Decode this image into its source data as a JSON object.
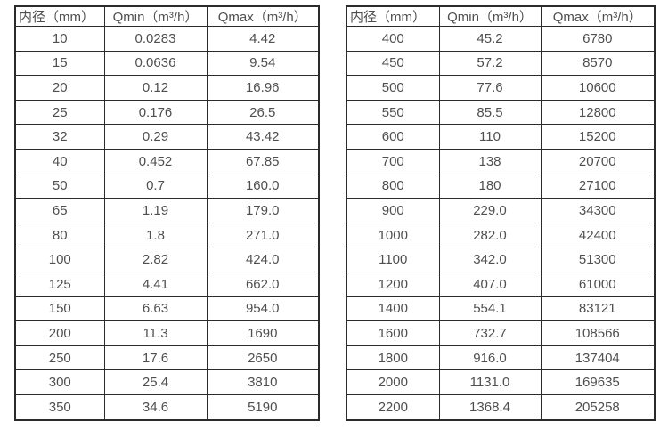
{
  "page": {
    "background": "#ffffff"
  },
  "colors": {
    "table_border": "#2b2b2b",
    "text": "#4f4f4f"
  },
  "tables": [
    {
      "name": "flow-spec-table-small-diameters",
      "columns": [
        "内径（mm）",
        "Qmin（m³/h）",
        "Qmax（m³/h）"
      ],
      "rows": [
        [
          "10",
          "0.0283",
          "4.42"
        ],
        [
          "15",
          "0.0636",
          "9.54"
        ],
        [
          "20",
          "0.12",
          "16.96"
        ],
        [
          "25",
          "0.176",
          "26.5"
        ],
        [
          "32",
          "0.29",
          "43.42"
        ],
        [
          "40",
          "0.452",
          "67.85"
        ],
        [
          "50",
          "0.7",
          "160.0"
        ],
        [
          "65",
          "1.19",
          "179.0"
        ],
        [
          "80",
          "1.8",
          "271.0"
        ],
        [
          "100",
          "2.82",
          "424.0"
        ],
        [
          "125",
          "4.41",
          "662.0"
        ],
        [
          "150",
          "6.63",
          "954.0"
        ],
        [
          "200",
          "11.3",
          "1690"
        ],
        [
          "250",
          "17.6",
          "2650"
        ],
        [
          "300",
          "25.4",
          "3810"
        ],
        [
          "350",
          "34.6",
          "5190"
        ]
      ]
    },
    {
      "name": "flow-spec-table-large-diameters",
      "columns": [
        "内径（mm）",
        "Qmin（m³/h）",
        "Qmax（m³/h）"
      ],
      "rows": [
        [
          "400",
          "45.2",
          "6780"
        ],
        [
          "450",
          "57.2",
          "8570"
        ],
        [
          "500",
          "77.6",
          "10600"
        ],
        [
          "550",
          "85.5",
          "12800"
        ],
        [
          "600",
          "110",
          "15200"
        ],
        [
          "700",
          "138",
          "20700"
        ],
        [
          "800",
          "180",
          "27100"
        ],
        [
          "900",
          "229.0",
          "34300"
        ],
        [
          "1000",
          "282.0",
          "42400"
        ],
        [
          "1100",
          "342.0",
          "51300"
        ],
        [
          "1200",
          "407.0",
          "61000"
        ],
        [
          "1400",
          "554.1",
          "83121"
        ],
        [
          "1600",
          "732.7",
          "108566"
        ],
        [
          "1800",
          "916.0",
          "137404"
        ],
        [
          "2000",
          "1131.0",
          "169635"
        ],
        [
          "2200",
          "1368.4",
          "205258"
        ]
      ]
    }
  ]
}
